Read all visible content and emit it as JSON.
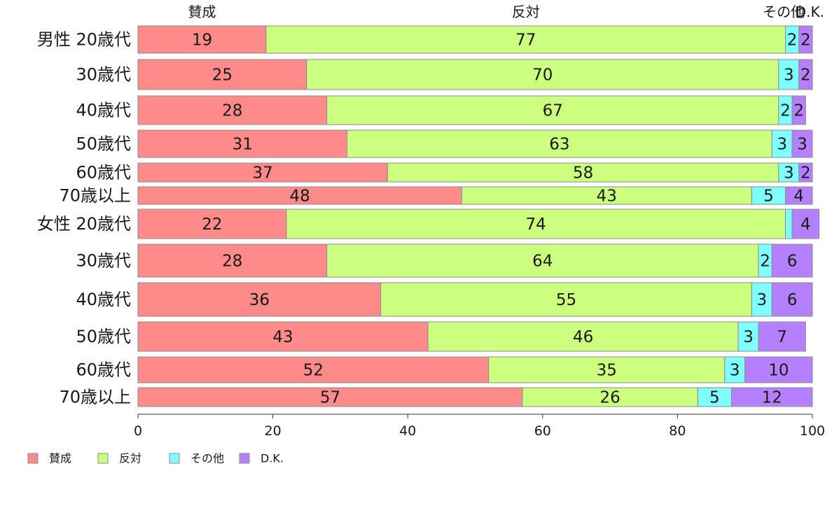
{
  "chart_data": {
    "type": "bar",
    "orientation": "horizontal",
    "stacked": true,
    "percent_stacked": true,
    "group_labels": [
      "男性",
      "女性"
    ],
    "categories": [
      "男性 20歳代",
      "30歳代",
      "40歳代",
      "50歳代",
      "60歳代",
      "70歳以上",
      "女性 20歳代",
      "30歳代",
      "40歳代",
      "50歳代",
      "60歳代",
      "70歳以上"
    ],
    "series": [
      {
        "name": "賛成",
        "color": "#ff8a8a",
        "values": [
          19,
          25,
          28,
          31,
          37,
          48,
          22,
          28,
          36,
          43,
          52,
          57
        ]
      },
      {
        "name": "反対",
        "color": "#ccff80",
        "values": [
          77,
          70,
          67,
          63,
          58,
          43,
          74,
          64,
          55,
          46,
          35,
          26
        ]
      },
      {
        "name": "その他",
        "color": "#80ffff",
        "values": [
          2,
          3,
          2,
          3,
          3,
          5,
          1,
          2,
          3,
          3,
          3,
          5
        ]
      },
      {
        "name": "D.K.",
        "color": "#b580ff",
        "values": [
          2,
          2,
          2,
          3,
          2,
          4,
          4,
          6,
          6,
          7,
          10,
          12
        ]
      }
    ],
    "top_labels": [
      "賛成",
      "反対",
      "その他",
      "D.K."
    ],
    "x_ticks": [
      0,
      20,
      40,
      60,
      80,
      100
    ],
    "xlim": [
      0,
      100
    ],
    "xlabel": "",
    "ylabel": "",
    "title": "",
    "grid": false,
    "legend": {
      "position": "bottom-left",
      "items": [
        "賛成",
        "反対",
        "その他",
        "D.K."
      ]
    }
  }
}
